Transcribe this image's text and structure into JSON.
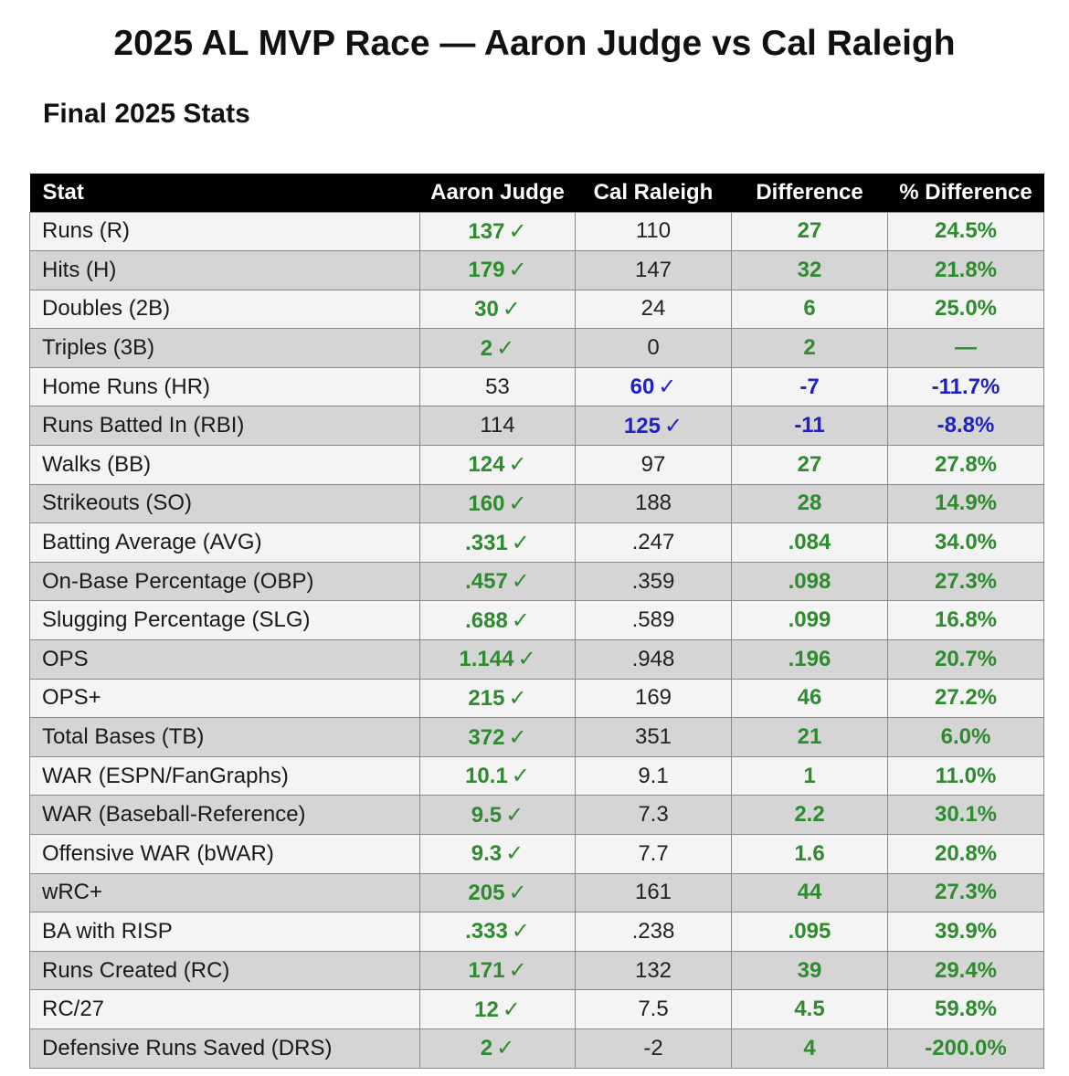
{
  "title": "2025 AL MVP Race — Aaron Judge vs Cal Raleigh",
  "subtitle": "Final 2025 Stats",
  "colors": {
    "judge_advantage": "#2e8b2e",
    "raleigh_advantage": "#2020c8",
    "header_bg": "#000000"
  },
  "check_mark": "✓",
  "table": {
    "headers": [
      "Stat",
      "Aaron Judge",
      "Cal Raleigh",
      "Difference",
      "% Difference"
    ],
    "rows": [
      {
        "stat": "Runs (R)",
        "judge": "137",
        "raleigh": "110",
        "diff": "27",
        "pct": "24.5%",
        "leader": "judge"
      },
      {
        "stat": "Hits (H)",
        "judge": "179",
        "raleigh": "147",
        "diff": "32",
        "pct": "21.8%",
        "leader": "judge"
      },
      {
        "stat": "Doubles (2B)",
        "judge": "30",
        "raleigh": "24",
        "diff": "6",
        "pct": "25.0%",
        "leader": "judge"
      },
      {
        "stat": "Triples (3B)",
        "judge": "2",
        "raleigh": "0",
        "diff": "2",
        "pct": "—",
        "leader": "judge"
      },
      {
        "stat": "Home Runs (HR)",
        "judge": "53",
        "raleigh": "60",
        "diff": "-7",
        "pct": "-11.7%",
        "leader": "raleigh"
      },
      {
        "stat": "Runs Batted In (RBI)",
        "judge": "114",
        "raleigh": "125",
        "diff": "-11",
        "pct": "-8.8%",
        "leader": "raleigh"
      },
      {
        "stat": "Walks (BB)",
        "judge": "124",
        "raleigh": "97",
        "diff": "27",
        "pct": "27.8%",
        "leader": "judge"
      },
      {
        "stat": "Strikeouts (SO)",
        "judge": "160",
        "raleigh": "188",
        "diff": "28",
        "pct": "14.9%",
        "leader": "judge"
      },
      {
        "stat": "Batting Average (AVG)",
        "judge": ".331",
        "raleigh": ".247",
        "diff": ".084",
        "pct": "34.0%",
        "leader": "judge"
      },
      {
        "stat": "On-Base Percentage (OBP)",
        "judge": ".457",
        "raleigh": ".359",
        "diff": ".098",
        "pct": "27.3%",
        "leader": "judge"
      },
      {
        "stat": "Slugging Percentage (SLG)",
        "judge": ".688",
        "raleigh": ".589",
        "diff": ".099",
        "pct": "16.8%",
        "leader": "judge"
      },
      {
        "stat": "OPS",
        "judge": "1.144",
        "raleigh": ".948",
        "diff": ".196",
        "pct": "20.7%",
        "leader": "judge"
      },
      {
        "stat": "OPS+",
        "judge": "215",
        "raleigh": "169",
        "diff": "46",
        "pct": "27.2%",
        "leader": "judge"
      },
      {
        "stat": "Total Bases (TB)",
        "judge": "372",
        "raleigh": "351",
        "diff": "21",
        "pct": "6.0%",
        "leader": "judge"
      },
      {
        "stat": "WAR (ESPN/FanGraphs)",
        "judge": "10.1",
        "raleigh": "9.1",
        "diff": "1",
        "pct": "11.0%",
        "leader": "judge"
      },
      {
        "stat": "WAR (Baseball-Reference)",
        "judge": "9.5",
        "raleigh": "7.3",
        "diff": "2.2",
        "pct": "30.1%",
        "leader": "judge"
      },
      {
        "stat": "Offensive WAR (bWAR)",
        "judge": "9.3",
        "raleigh": "7.7",
        "diff": "1.6",
        "pct": "20.8%",
        "leader": "judge"
      },
      {
        "stat": "wRC+",
        "judge": "205",
        "raleigh": "161",
        "diff": "44",
        "pct": "27.3%",
        "leader": "judge"
      },
      {
        "stat": "BA with RISP",
        "judge": ".333",
        "raleigh": ".238",
        "diff": ".095",
        "pct": "39.9%",
        "leader": "judge"
      },
      {
        "stat": "Runs Created (RC)",
        "judge": "171",
        "raleigh": "132",
        "diff": "39",
        "pct": "29.4%",
        "leader": "judge"
      },
      {
        "stat": "RC/27",
        "judge": "12",
        "raleigh": "7.5",
        "diff": "4.5",
        "pct": "59.8%",
        "leader": "judge"
      },
      {
        "stat": "Defensive Runs Saved (DRS)",
        "judge": "2",
        "raleigh": "-2",
        "diff": "4",
        "pct": "-200.0%",
        "leader": "judge"
      }
    ]
  }
}
